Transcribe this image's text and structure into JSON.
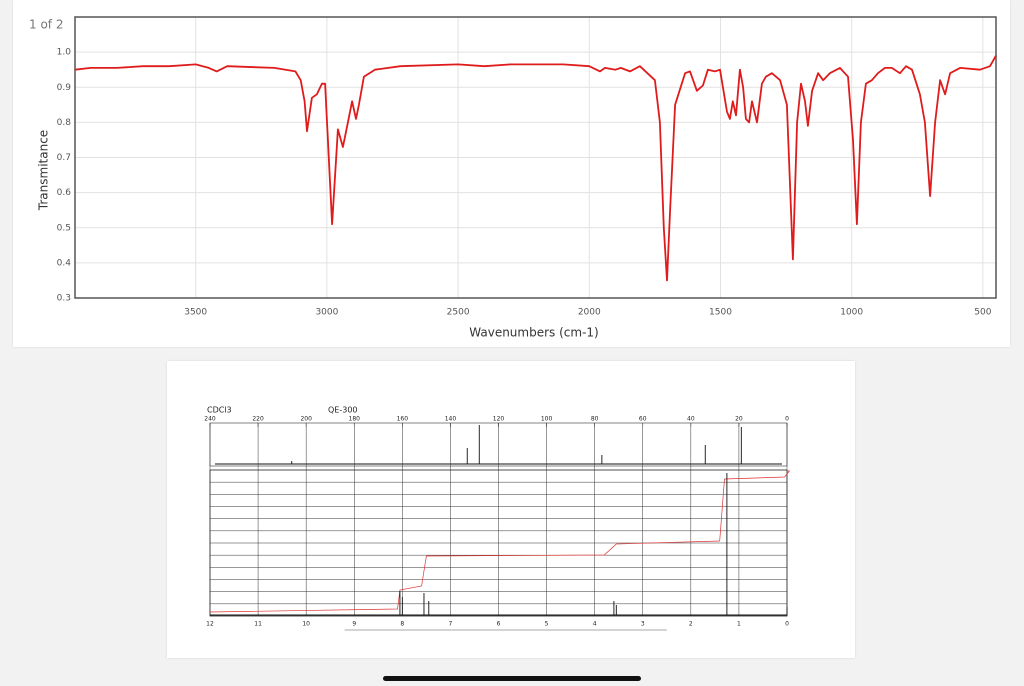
{
  "page_indicator": "1 of 2",
  "chart_data": {
    "type": "line",
    "xlabel": "Wavenumbers (cm-1)",
    "ylabel": "Transmitance",
    "xlim": [
      3960,
      450
    ],
    "ylim": [
      0.3,
      1.1
    ],
    "xticks": [
      3500,
      3000,
      2500,
      2000,
      1500,
      1000,
      500
    ],
    "yticks": [
      0.3,
      0.4,
      0.5,
      0.6,
      0.7,
      0.8,
      0.9,
      {
        "value": 1,
        "label": "1.0"
      }
    ],
    "grid": true,
    "x": [
      3960,
      3900,
      3800,
      3700,
      3600,
      3500,
      3450,
      3420,
      3380,
      3200,
      3120,
      3100,
      3085,
      3076,
      3057,
      3038,
      3019,
      3007,
      2980,
      2958,
      2939,
      2920,
      2904,
      2889,
      2878,
      2859,
      2817,
      2720,
      2500,
      2400,
      2300,
      2100,
      2000,
      1959,
      1940,
      1900,
      1880,
      1845,
      1807,
      1750,
      1731,
      1716,
      1704,
      1692,
      1673,
      1635,
      1616,
      1590,
      1567,
      1548,
      1521,
      1502,
      1475,
      1464,
      1453,
      1441,
      1426,
      1414,
      1403,
      1391,
      1380,
      1361,
      1342,
      1327,
      1304,
      1273,
      1247,
      1224,
      1208,
      1193,
      1178,
      1167,
      1151,
      1128,
      1109,
      1083,
      1045,
      1014,
      995,
      980,
      965,
      946,
      923,
      900,
      873,
      847,
      816,
      793,
      770,
      740,
      721,
      701,
      682,
      663,
      644,
      625,
      587,
      511,
      473,
      450
    ],
    "series": [
      {
        "name": "Transmitance",
        "color": "#e01b1b",
        "values": [
          0.95,
          0.955,
          0.955,
          0.96,
          0.96,
          0.965,
          0.955,
          0.945,
          0.96,
          0.955,
          0.945,
          0.92,
          0.86,
          0.775,
          0.87,
          0.88,
          0.91,
          0.91,
          0.51,
          0.78,
          0.73,
          0.8,
          0.86,
          0.81,
          0.85,
          0.93,
          0.95,
          0.96,
          0.965,
          0.96,
          0.965,
          0.965,
          0.96,
          0.945,
          0.955,
          0.95,
          0.955,
          0.945,
          0.96,
          0.92,
          0.8,
          0.5,
          0.35,
          0.55,
          0.85,
          0.94,
          0.945,
          0.89,
          0.905,
          0.95,
          0.945,
          0.95,
          0.83,
          0.81,
          0.86,
          0.82,
          0.95,
          0.9,
          0.81,
          0.8,
          0.86,
          0.8,
          0.91,
          0.93,
          0.94,
          0.92,
          0.85,
          0.41,
          0.8,
          0.91,
          0.86,
          0.79,
          0.89,
          0.94,
          0.92,
          0.94,
          0.955,
          0.93,
          0.75,
          0.51,
          0.8,
          0.91,
          0.92,
          0.94,
          0.955,
          0.955,
          0.94,
          0.96,
          0.95,
          0.88,
          0.8,
          0.59,
          0.8,
          0.92,
          0.88,
          0.94,
          0.955,
          0.95,
          0.96,
          0.99
        ]
      }
    ]
  },
  "nmr": {
    "solvent": "CDCl3",
    "instrument": "QE-300",
    "carbon_ticks": [
      240,
      220,
      200,
      180,
      160,
      140,
      120,
      100,
      80,
      60,
      40,
      20,
      0
    ],
    "proton_ticks": [
      12,
      11,
      10,
      9,
      8,
      7,
      6,
      5,
      4,
      3,
      2,
      1,
      0
    ]
  }
}
